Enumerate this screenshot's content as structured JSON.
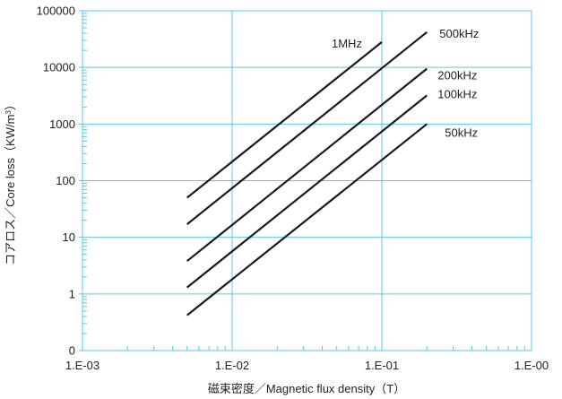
{
  "chart_data": {
    "type": "line",
    "title": "",
    "xlabel": "磁束密度／Magnetic flux density（T）",
    "ylabel_prefix": "コアロス／Core loss（KW/m",
    "ylabel_sup": "3",
    "ylabel_suffix": "）",
    "xscale": "log",
    "yscale": "log",
    "xlim": [
      0.001,
      1
    ],
    "ylim": [
      0.1,
      100000
    ],
    "xticks": [
      {
        "value": 0.001,
        "label": "1.E-03"
      },
      {
        "value": 0.01,
        "label": "1.E-02"
      },
      {
        "value": 0.1,
        "label": "1.E-01"
      },
      {
        "value": 1,
        "label": "1.E-00"
      }
    ],
    "yticks": [
      {
        "value": 0.1,
        "label": "0"
      },
      {
        "value": 1,
        "label": "1"
      },
      {
        "value": 10,
        "label": "10"
      },
      {
        "value": 100,
        "label": "100"
      },
      {
        "value": 1000,
        "label": "1000"
      },
      {
        "value": 10000,
        "label": "10000"
      },
      {
        "value": 100000,
        "label": "100000"
      }
    ],
    "grid": true,
    "legend": "inline labels at line ends",
    "series": [
      {
        "name": "1MHz",
        "x": [
          0.005,
          0.1
        ],
        "y": [
          50,
          28000
        ]
      },
      {
        "name": "500kHz",
        "x": [
          0.005,
          0.2
        ],
        "y": [
          17,
          42000
        ]
      },
      {
        "name": "200kHz",
        "x": [
          0.005,
          0.2
        ],
        "y": [
          3.8,
          9500
        ]
      },
      {
        "name": "100kHz",
        "x": [
          0.005,
          0.2
        ],
        "y": [
          1.3,
          3200
        ]
      },
      {
        "name": "50kHz",
        "x": [
          0.005,
          0.2
        ],
        "y": [
          0.42,
          1000
        ]
      }
    ],
    "colors": {
      "line": "#1a1a1a",
      "grid": "#5bc8e8",
      "axis": "#5bc8e8"
    }
  }
}
